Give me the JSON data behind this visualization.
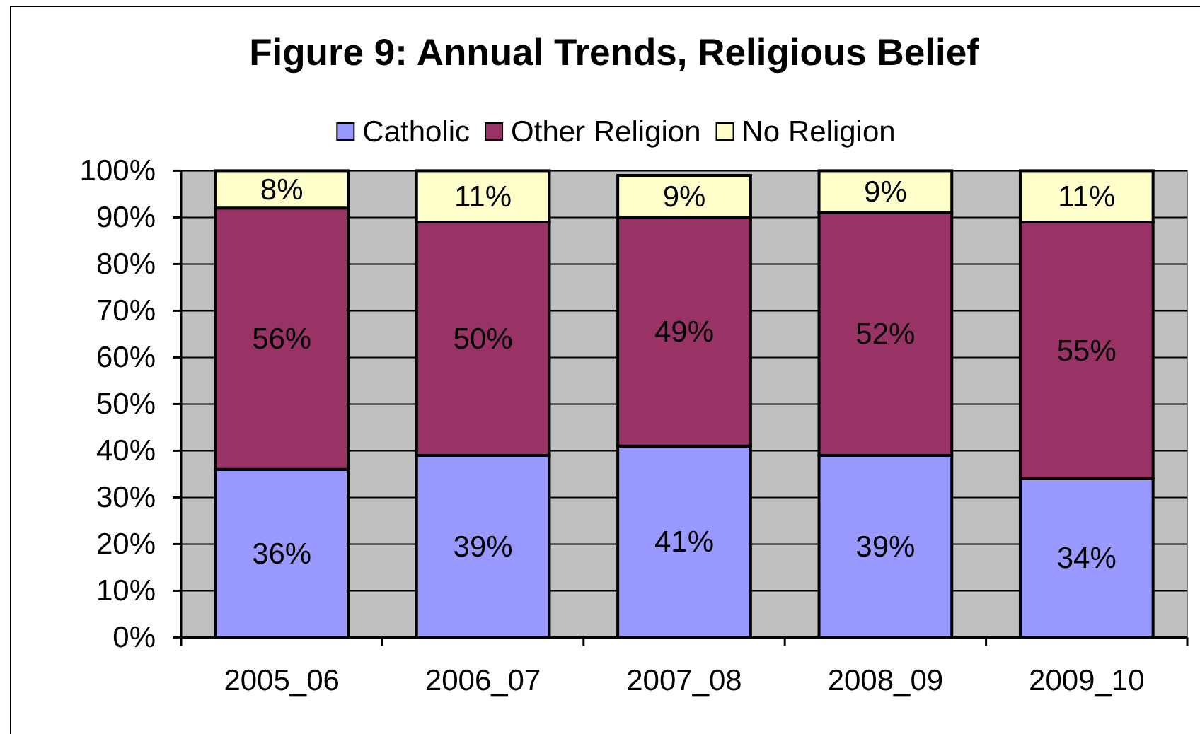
{
  "chart_data": {
    "type": "bar",
    "title": "Figure 9: Annual Trends, Religious Belief",
    "categories": [
      "2005_06",
      "2006_07",
      "2007_08",
      "2008_09",
      "2009_10"
    ],
    "stacked": true,
    "series": [
      {
        "name": "Catholic",
        "color": "#9999ff",
        "values": [
          36,
          39,
          41,
          39,
          34
        ],
        "value_labels": [
          "36%",
          "39%",
          "41%",
          "39%",
          "34%"
        ]
      },
      {
        "name": "Other Religion",
        "color": "#993366",
        "values": [
          56,
          50,
          49,
          52,
          55
        ],
        "value_labels": [
          "56%",
          "50%",
          "49%",
          "52%",
          "55%"
        ]
      },
      {
        "name": "No Religion",
        "color": "#ffffcc",
        "values": [
          8,
          11,
          9,
          9,
          11
        ],
        "value_labels": [
          "8%",
          "11%",
          "9%",
          "9%",
          "11%"
        ]
      }
    ],
    "ylim": [
      0,
      100
    ],
    "yticks": [
      {
        "value": 0,
        "label": "0%"
      },
      {
        "value": 10,
        "label": "10%"
      },
      {
        "value": 20,
        "label": "20%"
      },
      {
        "value": 30,
        "label": "30%"
      },
      {
        "value": 40,
        "label": "40%"
      },
      {
        "value": 50,
        "label": "50%"
      },
      {
        "value": 60,
        "label": "60%"
      },
      {
        "value": 70,
        "label": "70%"
      },
      {
        "value": 80,
        "label": "80%"
      },
      {
        "value": 90,
        "label": "90%"
      },
      {
        "value": 100,
        "label": "100%"
      }
    ],
    "grid": "y",
    "legend": "top"
  }
}
